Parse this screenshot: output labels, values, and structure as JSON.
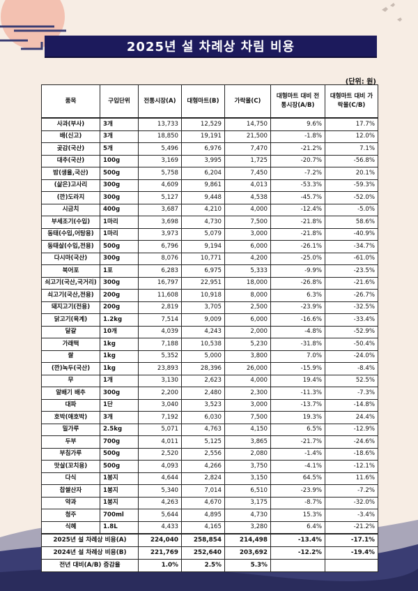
{
  "title": "2025년 설 차례상 차림 비용",
  "unit_note": "(단위: 원)",
  "headers": [
    "품목",
    "구입단위",
    "전통시장(A)",
    "대형마트(B)",
    "가락몰(C)",
    "대형마트 대비 전통시장(A/B)",
    "대형마트 대비 가락몰(C/B)"
  ],
  "rows": [
    {
      "item": "사과(부사)",
      "unit": "3개",
      "a": "13,733",
      "b": "12,529",
      "c": "14,750",
      "ab": "9.6%",
      "cb": "17.7%"
    },
    {
      "item": "배(신고)",
      "unit": "3개",
      "a": "18,850",
      "b": "19,191",
      "c": "21,500",
      "ab": "-1.8%",
      "cb": "12.0%"
    },
    {
      "item": "곶감(국산)",
      "unit": "5개",
      "a": "5,496",
      "b": "6,976",
      "c": "7,470",
      "ab": "-21.2%",
      "cb": "7.1%"
    },
    {
      "item": "대추(국산)",
      "unit": "100g",
      "a": "3,169",
      "b": "3,995",
      "c": "1,725",
      "ab": "-20.7%",
      "cb": "-56.8%"
    },
    {
      "item": "밤(생율,국산)",
      "unit": "500g",
      "a": "5,758",
      "b": "6,204",
      "c": "7,450",
      "ab": "-7.2%",
      "cb": "20.1%"
    },
    {
      "item": "(삶은)고사리",
      "unit": "300g",
      "a": "4,609",
      "b": "9,861",
      "c": "4,013",
      "ab": "-53.3%",
      "cb": "-59.3%"
    },
    {
      "item": "(깐)도라지",
      "unit": "300g",
      "a": "5,127",
      "b": "9,448",
      "c": "4,538",
      "ab": "-45.7%",
      "cb": "-52.0%"
    },
    {
      "item": "시금치",
      "unit": "400g",
      "a": "3,687",
      "b": "4,210",
      "c": "4,000",
      "ab": "-12.4%",
      "cb": "-5.0%"
    },
    {
      "item": "부세조기(수입)",
      "unit": "1마리",
      "a": "3,698",
      "b": "4,730",
      "c": "7,500",
      "ab": "-21.8%",
      "cb": "58.6%"
    },
    {
      "item": "동태(수입,어탕용)",
      "unit": "1마리",
      "a": "3,973",
      "b": "5,079",
      "c": "3,000",
      "ab": "-21.8%",
      "cb": "-40.9%"
    },
    {
      "item": "동태살(수입,전용)",
      "unit": "500g",
      "a": "6,796",
      "b": "9,194",
      "c": "6,000",
      "ab": "-26.1%",
      "cb": "-34.7%"
    },
    {
      "item": "다시마(국산)",
      "unit": "300g",
      "a": "8,076",
      "b": "10,771",
      "c": "4,200",
      "ab": "-25.0%",
      "cb": "-61.0%"
    },
    {
      "item": "북어포",
      "unit": "1포",
      "a": "6,283",
      "b": "6,975",
      "c": "5,333",
      "ab": "-9.9%",
      "cb": "-23.5%"
    },
    {
      "item": "쇠고기(국산,국거리)",
      "unit": "300g",
      "a": "16,797",
      "b": "22,951",
      "c": "18,000",
      "ab": "-26.8%",
      "cb": "-21.6%"
    },
    {
      "item": "쇠고기(국산,전용)",
      "unit": "200g",
      "a": "11,608",
      "b": "10,918",
      "c": "8,000",
      "ab": "6.3%",
      "cb": "-26.7%"
    },
    {
      "item": "돼지고기(전용)",
      "unit": "200g",
      "a": "2,819",
      "b": "3,705",
      "c": "2,500",
      "ab": "-23.9%",
      "cb": "-32.5%"
    },
    {
      "item": "닭고기(육계)",
      "unit": "1.2kg",
      "a": "7,514",
      "b": "9,009",
      "c": "6,000",
      "ab": "-16.6%",
      "cb": "-33.4%"
    },
    {
      "item": "달걀",
      "unit": "10개",
      "a": "4,039",
      "b": "4,243",
      "c": "2,000",
      "ab": "-4.8%",
      "cb": "-52.9%"
    },
    {
      "item": "가래떡",
      "unit": "1kg",
      "a": "7,188",
      "b": "10,538",
      "c": "5,230",
      "ab": "-31.8%",
      "cb": "-50.4%"
    },
    {
      "item": "쌀",
      "unit": "1kg",
      "a": "5,352",
      "b": "5,000",
      "c": "3,800",
      "ab": "7.0%",
      "cb": "-24.0%"
    },
    {
      "item": "(깐)녹두(국산)",
      "unit": "1kg",
      "a": "23,893",
      "b": "28,396",
      "c": "26,000",
      "ab": "-15.9%",
      "cb": "-8.4%"
    },
    {
      "item": "무",
      "unit": "1개",
      "a": "3,130",
      "b": "2,623",
      "c": "4,000",
      "ab": "19.4%",
      "cb": "52.5%"
    },
    {
      "item": "알배기 배추",
      "unit": "300g",
      "a": "2,200",
      "b": "2,480",
      "c": "2,300",
      "ab": "-11.3%",
      "cb": "-7.3%"
    },
    {
      "item": "대파",
      "unit": "1단",
      "a": "3,040",
      "b": "3,523",
      "c": "3,000",
      "ab": "-13.7%",
      "cb": "-14.8%"
    },
    {
      "item": "호박(애호박)",
      "unit": "3개",
      "a": "7,192",
      "b": "6,030",
      "c": "7,500",
      "ab": "19.3%",
      "cb": "24.4%"
    },
    {
      "item": "밀가루",
      "unit": "2.5kg",
      "a": "5,071",
      "b": "4,763",
      "c": "4,150",
      "ab": "6.5%",
      "cb": "-12.9%"
    },
    {
      "item": "두부",
      "unit": "700g",
      "a": "4,011",
      "b": "5,125",
      "c": "3,865",
      "ab": "-21.7%",
      "cb": "-24.6%"
    },
    {
      "item": "부침가루",
      "unit": "500g",
      "a": "2,520",
      "b": "2,556",
      "c": "2,080",
      "ab": "-1.4%",
      "cb": "-18.6%"
    },
    {
      "item": "맛살(꼬치용)",
      "unit": "500g",
      "a": "4,093",
      "b": "4,266",
      "c": "3,750",
      "ab": "-4.1%",
      "cb": "-12.1%"
    },
    {
      "item": "다식",
      "unit": "1봉지",
      "a": "4,644",
      "b": "2,824",
      "c": "3,150",
      "ab": "64.5%",
      "cb": "11.6%"
    },
    {
      "item": "찹쌀산자",
      "unit": "1봉지",
      "a": "5,340",
      "b": "7,014",
      "c": "6,510",
      "ab": "-23.9%",
      "cb": "-7.2%"
    },
    {
      "item": "약과",
      "unit": "1봉지",
      "a": "4,263",
      "b": "4,670",
      "c": "3,175",
      "ab": "-8.7%",
      "cb": "-32.0%"
    },
    {
      "item": "청주",
      "unit": "700ml",
      "a": "5,644",
      "b": "4,895",
      "c": "4,730",
      "ab": "15.3%",
      "cb": "-3.4%"
    },
    {
      "item": "식혜",
      "unit": "1.8L",
      "a": "4,433",
      "b": "4,165",
      "c": "3,280",
      "ab": "6.4%",
      "cb": "-21.2%"
    }
  ],
  "summary": [
    {
      "label": "2025년 설 차례상 비용(A)",
      "a": "224,040",
      "b": "258,854",
      "c": "214,498",
      "ab": "-13.4%",
      "cb": "-17.1%"
    },
    {
      "label": "2024년 설 차례상 비용(B)",
      "a": "221,769",
      "b": "252,640",
      "c": "203,692",
      "ab": "-12.2%",
      "cb": "-19.4%"
    },
    {
      "label": "전년 대비(A/B) 증감율",
      "a": "1.0%",
      "b": "2.5%",
      "c": "5.3%",
      "ab": "",
      "cb": ""
    }
  ],
  "colors": {
    "background": "#f7ede4",
    "title_bar": "#1c1a5c",
    "sun": "#f2b8a8",
    "waves": "#3a3d73"
  }
}
